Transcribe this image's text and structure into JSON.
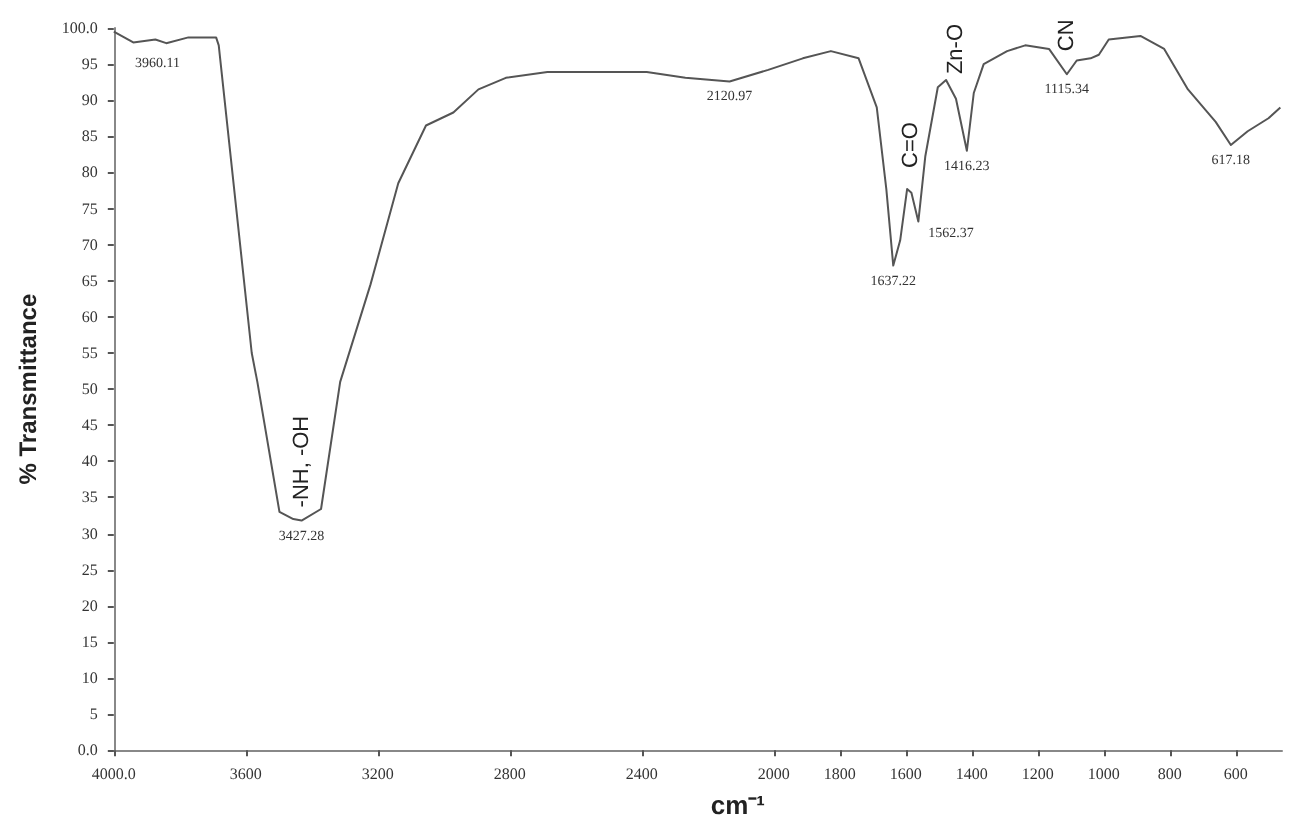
{
  "chart_data": {
    "type": "line",
    "xlabel": "cm⁻¹",
    "ylabel": "% Transmittance",
    "series": [
      {
        "color": "#555555",
        "x": [
          4000,
          3941,
          3874,
          3841,
          3774,
          3690,
          3682,
          3582,
          3565,
          3498,
          3456,
          3431,
          3372,
          3314,
          3222,
          3138,
          3054,
          2971,
          2895,
          2812,
          2686,
          2385,
          2268,
          2134,
          2017,
          1912,
          1827,
          1743,
          1688,
          1659,
          1638,
          1617,
          1596,
          1583,
          1562,
          1541,
          1503,
          1478,
          1448,
          1415,
          1394,
          1364,
          1293,
          1238,
          1166,
          1112,
          1082,
          1040,
          1015,
          985,
          889,
          817,
          745,
          661,
          615,
          564,
          501,
          465
        ],
        "values": [
          99.5,
          98,
          98.4,
          97.9,
          98.7,
          98.7,
          97.6,
          55,
          51,
          33,
          32,
          31.8,
          33.4,
          51,
          64.5,
          78.5,
          86.5,
          88.3,
          91.5,
          93.1,
          93.9,
          93.9,
          93.1,
          92.6,
          94.2,
          95.8,
          96.8,
          95.8,
          89,
          77.7,
          67.1,
          70.6,
          77.7,
          77.2,
          73.2,
          82.2,
          91.8,
          92.8,
          90.2,
          83,
          91,
          95,
          96.8,
          97.6,
          97.1,
          93.6,
          95.5,
          95.8,
          96.3,
          98.4,
          98.9,
          97.1,
          91.5,
          87,
          83.8,
          85.7,
          87.5,
          89
        ]
      }
    ],
    "xlim": [
      4000,
      460
    ],
    "xticks": [
      {
        "value": 4000,
        "label": "4000.0"
      },
      3600,
      3200,
      2800,
      2400,
      2000,
      1800,
      1600,
      1400,
      1200,
      1000,
      800,
      600
    ],
    "ylim": [
      0,
      100
    ],
    "yticks": [
      {
        "value": 0,
        "label": "0.0"
      },
      5,
      10,
      15,
      20,
      25,
      30,
      35,
      40,
      45,
      50,
      55,
      60,
      65,
      70,
      75,
      80,
      85,
      90,
      95,
      {
        "value": 100,
        "label": "100.0"
      }
    ],
    "grid": false,
    "marker": "none",
    "annotations": [
      {
        "text": "3960.11",
        "x": 3960,
        "y": 98
      },
      {
        "text": "3427.28",
        "x": 3431,
        "y": 31.8
      },
      {
        "text": "2120.97",
        "x": 2134,
        "y": 92.6
      },
      {
        "text": "1637.22",
        "x": 1638,
        "y": 67.1
      },
      {
        "text": "1562.37",
        "x": 1562,
        "y": 73.2
      },
      {
        "text": "1416.23",
        "x": 1415,
        "y": 83
      },
      {
        "text": "1115.34",
        "x": 1112,
        "y": 93.6
      },
      {
        "text": "617.18",
        "x": 615,
        "y": 83.8
      },
      {
        "text": "-NH, -OH",
        "x": 3431,
        "y": 31.8
      },
      {
        "text": "C=O",
        "x": 1583,
        "y": 77.2
      },
      {
        "text": "Zn-O",
        "x": 1448,
        "y": 90.2
      },
      {
        "text": "CN",
        "x": 1112,
        "y": 93.6
      }
    ]
  }
}
